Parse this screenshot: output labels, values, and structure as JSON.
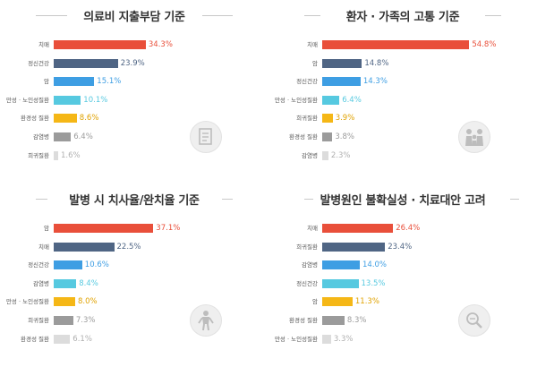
{
  "colors": {
    "red": "#e94f3a",
    "navy": "#4f6584",
    "blue": "#3e9ee3",
    "cyan": "#56c9e0",
    "yellow": "#f5b716",
    "gray": "#9b9b9b",
    "lightgray": "#dcdcdc"
  },
  "chart_data": [
    {
      "type": "bar",
      "title": "의료비 지출부담 기준",
      "categories": [
        "치매",
        "정신건강",
        "암",
        "만성 · 노인성질환",
        "환경성 질환",
        "감염병",
        "희귀질환"
      ],
      "values": [
        34.3,
        23.9,
        15.1,
        10.1,
        8.6,
        6.4,
        1.6
      ],
      "value_labels": [
        "34.3%",
        "23.9%",
        "15.1%",
        "10.1%",
        "8.6%",
        "6.4%",
        "1.6%"
      ],
      "colors": [
        "red",
        "navy",
        "blue",
        "cyan",
        "yellow",
        "gray",
        "lightgray"
      ],
      "icon": "document-icon"
    },
    {
      "type": "bar",
      "title": "환자 · 가족의 고통 기준",
      "categories": [
        "치매",
        "암",
        "정신건강",
        "만성 · 노인성질환",
        "희귀질환",
        "환경성 질환",
        "감염병"
      ],
      "values": [
        54.8,
        14.8,
        14.3,
        6.4,
        3.9,
        3.8,
        2.3
      ],
      "value_labels": [
        "54.8%",
        "14.8%",
        "14.3%",
        "6.4%",
        "3.9%",
        "3.8%",
        "2.3%"
      ],
      "colors": [
        "red",
        "navy",
        "blue",
        "cyan",
        "yellow",
        "gray",
        "lightgray"
      ],
      "icon": "family-icon"
    },
    {
      "type": "bar",
      "title": "발병 시 치사율/완치율 기준",
      "categories": [
        "암",
        "치매",
        "정신건강",
        "감염병",
        "만성 · 노인성질환",
        "희귀질환",
        "환경성 질환"
      ],
      "values": [
        37.1,
        22.5,
        10.6,
        8.4,
        8.0,
        7.3,
        6.1
      ],
      "value_labels": [
        "37.1%",
        "22.5%",
        "10.6%",
        "8.4%",
        "8.0%",
        "7.3%",
        "6.1%"
      ],
      "colors": [
        "red",
        "navy",
        "blue",
        "cyan",
        "yellow",
        "gray",
        "lightgray"
      ],
      "icon": "person-icon"
    },
    {
      "type": "bar",
      "title": "발병원인 불확실성 · 치료대안 고려",
      "categories": [
        "치매",
        "희귀질환",
        "감염병",
        "정신건강",
        "암",
        "환경성 질환",
        "만성 · 노인성질환"
      ],
      "values": [
        26.4,
        23.4,
        14.0,
        13.5,
        11.3,
        8.3,
        3.3
      ],
      "value_labels": [
        "26.4%",
        "23.4%",
        "14.0%",
        "13.5%",
        "11.3%",
        "8.3%",
        "3.3%"
      ],
      "colors": [
        "red",
        "navy",
        "blue",
        "cyan",
        "yellow",
        "gray",
        "lightgray"
      ],
      "icon": "magnifier-icon"
    }
  ]
}
